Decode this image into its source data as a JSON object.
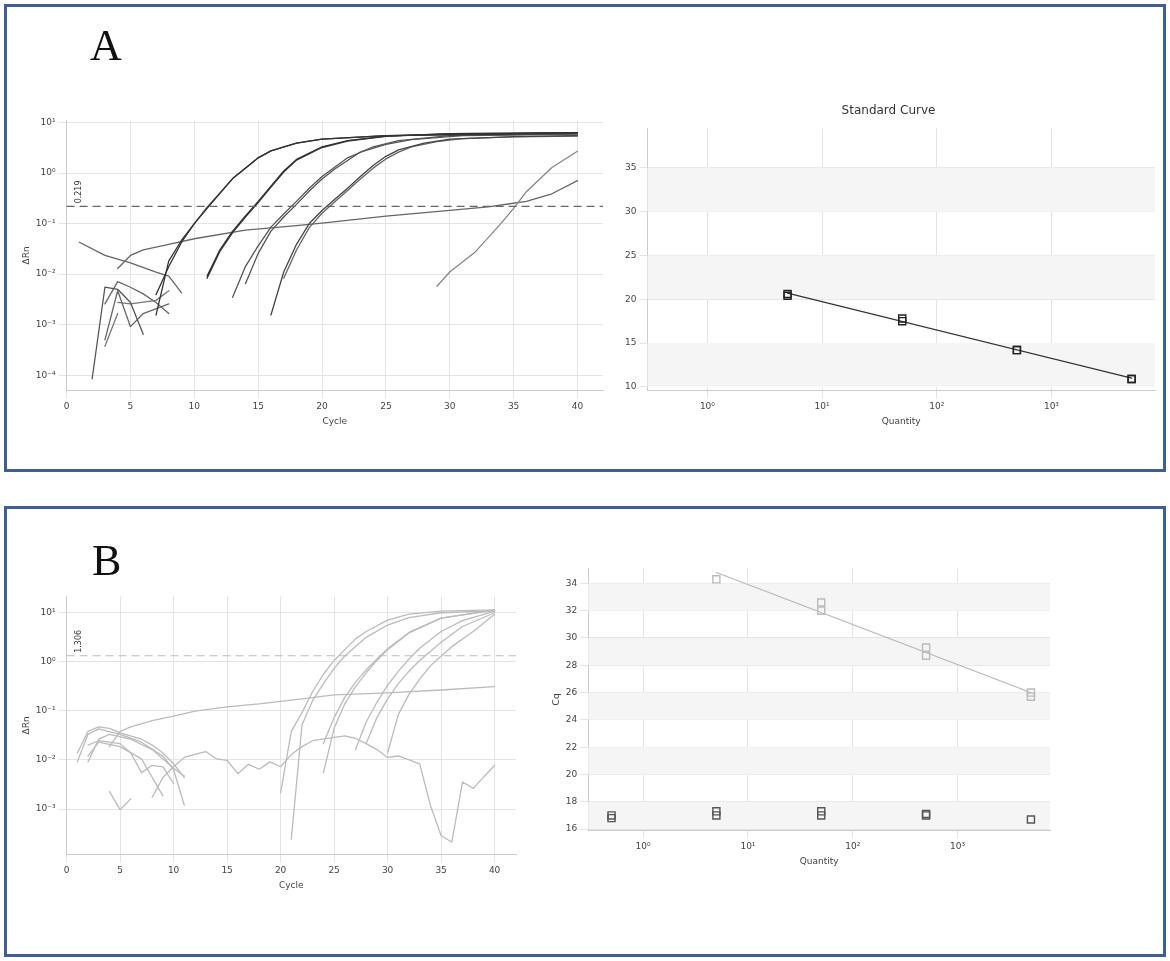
{
  "chart_data": [
    {
      "type": "line",
      "ylabel": "ΔRn",
      "xlabel": "Cycle",
      "annotations": [
        "A"
      ],
      "log": "y",
      "grid": true,
      "legend": false,
      "marker": "none",
      "xlim": [
        0,
        42
      ],
      "xticks": [
        0,
        5,
        10,
        15,
        20,
        25,
        30,
        35,
        40
      ],
      "ylim": [
        5e-05,
        11
      ],
      "yticks": [
        {
          "value": 10,
          "label": "10¹"
        },
        {
          "value": 1,
          "label": "10⁰"
        },
        {
          "value": 0.1,
          "label": "10⁻¹"
        },
        {
          "value": 0.01,
          "label": "10⁻²"
        },
        {
          "value": 0.001,
          "label": "10⁻³"
        },
        {
          "value": 0.0001,
          "label": "10⁻⁴"
        }
      ],
      "ref_lines": [
        {
          "axis": "y",
          "value": 0.219,
          "label": "0.219",
          "color": "#666666",
          "line_style": "dashed"
        }
      ],
      "series": [
        {
          "color": "#333333",
          "x": [
            7,
            8,
            9,
            10,
            11,
            13,
            15,
            16,
            18,
            20,
            25,
            40
          ],
          "values": [
            0.00155,
            0.0182,
            0.0468,
            0.1,
            0.209,
            0.776,
            2.0,
            2.75,
            3.89,
            4.68,
            5.5,
            6.17
          ]
        },
        {
          "color": "#333333",
          "x": [
            7,
            8,
            9,
            10,
            11,
            13,
            15,
            16,
            18,
            20,
            25,
            40
          ],
          "values": [
            0.0039,
            0.0141,
            0.0427,
            0.1,
            0.2,
            0.776,
            2.0,
            2.75,
            3.89,
            4.68,
            5.5,
            6.31
          ]
        },
        {
          "color": "#333333",
          "x": [
            11,
            12,
            13,
            14,
            15,
            16,
            17,
            18,
            20,
            22,
            25,
            30,
            40
          ],
          "values": [
            0.00912,
            0.0302,
            0.0708,
            0.141,
            0.275,
            0.55,
            1.1,
            1.86,
            3.31,
            4.37,
            5.37,
            6.03,
            6.31
          ]
        },
        {
          "color": "#333333",
          "x": [
            11,
            12,
            13,
            14,
            15,
            16,
            17,
            18,
            20,
            22,
            25,
            30,
            40
          ],
          "values": [
            0.0083,
            0.028,
            0.066,
            0.135,
            0.26,
            0.53,
            1.05,
            1.8,
            3.2,
            4.3,
            5.3,
            6.0,
            6.2
          ]
        },
        {
          "color": "#555555",
          "x": [
            13,
            14,
            15,
            16,
            17,
            18,
            19,
            20,
            22,
            24,
            26,
            30,
            40
          ],
          "values": [
            0.00347,
            0.0141,
            0.0363,
            0.0851,
            0.155,
            0.275,
            0.501,
            0.851,
            2.0,
            3.31,
            4.37,
            5.5,
            6.03
          ]
        },
        {
          "color": "#555555",
          "x": [
            14,
            15,
            16,
            17,
            18,
            19,
            20,
            21,
            23,
            25,
            27,
            31,
            40
          ],
          "values": [
            0.00646,
            0.0257,
            0.0708,
            0.135,
            0.24,
            0.44,
            0.76,
            1.2,
            2.6,
            3.7,
            4.6,
            5.5,
            5.9
          ]
        },
        {
          "color": "#444444",
          "x": [
            16,
            17,
            18,
            19,
            20,
            21,
            22,
            23,
            24,
            25,
            26,
            28,
            30,
            35,
            40
          ],
          "values": [
            0.00155,
            0.011,
            0.0389,
            0.1,
            0.182,
            0.302,
            0.501,
            0.851,
            1.41,
            2.14,
            2.88,
            3.89,
            4.68,
            5.25,
            5.5
          ]
        },
        {
          "color": "#666666",
          "x": [
            17,
            18,
            19,
            20,
            21,
            22,
            23,
            24,
            25,
            26,
            27,
            29,
            31,
            35,
            40
          ],
          "values": [
            0.0083,
            0.03,
            0.083,
            0.16,
            0.27,
            0.45,
            0.76,
            1.25,
            1.9,
            2.6,
            3.3,
            4.2,
            4.8,
            5.2,
            5.4
          ]
        },
        {
          "color": "#888888",
          "x": [
            29,
            30,
            32,
            34,
            35,
            36,
            38,
            40
          ],
          "values": [
            0.00575,
            0.011,
            0.0275,
            0.1,
            0.2,
            0.427,
            1.29,
            2.69
          ]
        },
        {
          "color": "#666666",
          "x": [
            4,
            5,
            6,
            8,
            10,
            14,
            18,
            20,
            25,
            30,
            33,
            36,
            38,
            40
          ],
          "values": [
            0.0129,
            0.0234,
            0.0302,
            0.0389,
            0.0501,
            0.0741,
            0.0912,
            0.102,
            0.141,
            0.182,
            0.214,
            0.275,
            0.389,
            0.708
          ]
        },
        {
          "color": "#666666",
          "x": [
            1,
            3,
            5,
            7,
            8,
            9
          ],
          "values": [
            0.0427,
            0.0234,
            0.0166,
            0.011,
            0.00912,
            0.00427
          ]
        },
        {
          "color": "#555555",
          "x": [
            2,
            3,
            4,
            5,
            6
          ],
          "values": [
            8.51e-05,
            0.0055,
            0.00501,
            0.00275,
            0.000646
          ]
        },
        {
          "color": "#666666",
          "x": [
            3,
            4,
            5,
            6,
            7,
            8
          ],
          "values": [
            0.00257,
            0.00708,
            0.0055,
            0.00407,
            0.00275,
            0.00166
          ]
        },
        {
          "color": "#666666",
          "x": [
            3,
            4,
            5,
            6,
            8
          ],
          "values": [
            0.000501,
            0.00468,
            0.000912,
            0.00166,
            0.00257
          ]
        },
        {
          "color": "#777777",
          "x": [
            3,
            4
          ],
          "values": [
            0.000372,
            0.00166
          ]
        },
        {
          "color": "#777777",
          "x": [
            4,
            5,
            7,
            8
          ],
          "values": [
            0.00275,
            0.00257,
            0.00302,
            0.00468
          ]
        }
      ]
    },
    {
      "type": "scatter",
      "title": "Standard Curve",
      "xlabel": "Quantity",
      "log": "x",
      "grid": true,
      "legend": false,
      "xlim": [
        0.31,
        8000
      ],
      "xticks": [
        {
          "value": 1,
          "label": "10⁰"
        },
        {
          "value": 10,
          "label": "10¹"
        },
        {
          "value": 100,
          "label": "10²"
        },
        {
          "value": 1000,
          "label": "10³"
        }
      ],
      "ylim": [
        9.6,
        39.5
      ],
      "yticks": [
        10,
        15,
        20,
        25,
        30,
        35
      ],
      "bands": [
        {
          "axis": "y",
          "from": 10,
          "to": 15,
          "color": "#f5f5f5"
        },
        {
          "axis": "y",
          "from": 20,
          "to": 25,
          "color": "#f5f5f5"
        },
        {
          "axis": "y",
          "from": 30,
          "to": 35,
          "color": "#f5f5f5"
        }
      ],
      "series": [
        {
          "color": "#222222",
          "marker": "square",
          "x": [
            5,
            5,
            50,
            50,
            500,
            500,
            5000,
            5000
          ],
          "values": [
            20.6,
            20.4,
            17.8,
            17.5,
            14.2,
            14.2,
            10.9,
            10.9
          ]
        },
        {
          "type": "line",
          "marker": "none",
          "color": "#333333",
          "x": [
            5,
            5000
          ],
          "values": [
            20.7,
            11.0
          ]
        }
      ]
    },
    {
      "type": "line",
      "ylabel": "ΔRn",
      "xlabel": "Cycle",
      "annotations": [
        "B"
      ],
      "log": "y",
      "grid": true,
      "legend": false,
      "marker": "none",
      "xlim": [
        0,
        42
      ],
      "xticks": [
        0,
        5,
        10,
        15,
        20,
        25,
        30,
        35,
        40
      ],
      "ylim": [
        0.00012,
        21
      ],
      "yticks": [
        {
          "value": 10,
          "label": "10¹"
        },
        {
          "value": 1,
          "label": "10⁰"
        },
        {
          "value": 0.1,
          "label": "10⁻¹"
        },
        {
          "value": 0.01,
          "label": "10⁻²"
        },
        {
          "value": 0.001,
          "label": "10⁻³"
        }
      ],
      "ref_lines": [
        {
          "axis": "y",
          "value": 1.306,
          "label": "1.306",
          "color": "#bbbbbb",
          "line_style": "dashed"
        }
      ],
      "series": [
        {
          "color": "#bbbbbb",
          "x": [
            20,
            21,
            22,
            23,
            24,
            25,
            26,
            27,
            28,
            30,
            32,
            35,
            40
          ],
          "values": [
            0.00214,
            0.038,
            0.0912,
            0.245,
            0.55,
            1.05,
            1.74,
            2.88,
            4.07,
            6.92,
            9.12,
            10.5,
            11.2
          ]
        },
        {
          "color": "#bbbbbb",
          "x": [
            21,
            22,
            23,
            24,
            25,
            26,
            28,
            30,
            32,
            35,
            40
          ],
          "values": [
            0.000245,
            0.0513,
            0.162,
            0.355,
            0.724,
            1.29,
            3.09,
            5.5,
            7.76,
            9.77,
            10.7
          ]
        },
        {
          "color": "#bbbbbb",
          "x": [
            24,
            25,
            26,
            27,
            28,
            29,
            30,
            32,
            35,
            40
          ],
          "values": [
            0.0055,
            0.0437,
            0.138,
            0.309,
            0.589,
            1.05,
            1.74,
            3.8,
            7.59,
            11.0
          ]
        },
        {
          "color": "#bbbbbb",
          "x": [
            24,
            25,
            26,
            27,
            28,
            29,
            30,
            32,
            35,
            40
          ],
          "values": [
            0.0214,
            0.0724,
            0.186,
            0.38,
            0.676,
            1.12,
            1.82,
            3.89,
            7.59,
            11.0
          ]
        },
        {
          "color": "#bbbbbb",
          "x": [
            27,
            28,
            29,
            30,
            31,
            32,
            33,
            35,
            37,
            40
          ],
          "values": [
            0.0162,
            0.0589,
            0.148,
            0.331,
            0.631,
            1.12,
            1.86,
            4.07,
            6.76,
            10.5
          ]
        },
        {
          "color": "#bbbbbb",
          "x": [
            28,
            29,
            30,
            31,
            32,
            33,
            35,
            37,
            40
          ],
          "values": [
            0.0214,
            0.0724,
            0.174,
            0.355,
            0.631,
            1.05,
            2.45,
            5.13,
            9.77
          ]
        },
        {
          "color": "#bbbbbb",
          "x": [
            30,
            31,
            32,
            33,
            34,
            35,
            36,
            38,
            40
          ],
          "values": [
            0.0138,
            0.0832,
            0.214,
            0.437,
            0.813,
            1.29,
            2.0,
            4.07,
            9.12
          ]
        },
        {
          "color": "#bbbbbb",
          "x": [
            4,
            5,
            6,
            8,
            10,
            12,
            15,
            18,
            20,
            22,
            25,
            30,
            35,
            40
          ],
          "values": [
            0.0186,
            0.038,
            0.0468,
            0.0631,
            0.0776,
            0.0977,
            0.12,
            0.138,
            0.155,
            0.174,
            0.209,
            0.229,
            0.263,
            0.309
          ]
        },
        {
          "color": "#bbbbbb",
          "x": [
            1,
            2,
            3,
            4,
            5,
            7,
            8,
            9,
            10,
            11
          ],
          "values": [
            0.0138,
            0.038,
            0.0468,
            0.0437,
            0.0355,
            0.0263,
            0.02,
            0.0138,
            0.00832,
            0.00437
          ]
        },
        {
          "color": "#bbbbbb",
          "x": [
            1,
            2,
            3,
            5,
            7,
            9,
            10,
            11
          ],
          "values": [
            0.00912,
            0.0331,
            0.0427,
            0.0331,
            0.0229,
            0.012,
            0.00631,
            0.0012
          ]
        },
        {
          "color": "#bbbbbb",
          "x": [
            2,
            3,
            4,
            6,
            8,
            10,
            11
          ],
          "values": [
            0.00912,
            0.0263,
            0.0331,
            0.0263,
            0.0162,
            0.00676,
            0.00468
          ]
        },
        {
          "color": "#bbbbbb",
          "x": [
            2,
            3,
            5,
            6,
            7,
            8,
            9,
            10
          ],
          "values": [
            0.02,
            0.0245,
            0.0214,
            0.0138,
            0.0055,
            0.00776,
            0.00724,
            0.00331
          ]
        },
        {
          "color": "#bbbbbb",
          "x": [
            2,
            3,
            5,
            7,
            9
          ],
          "values": [
            0.012,
            0.0229,
            0.0186,
            0.0105,
            0.00186
          ]
        },
        {
          "color": "#bbbbbb",
          "x": [
            4,
            5,
            6
          ],
          "values": [
            0.00229,
            0.000977,
            0.00162
          ]
        },
        {
          "color": "#bbbbbb",
          "x": [
            8,
            9,
            10,
            11,
            12,
            13,
            14,
            15,
            16,
            17,
            18,
            19,
            20,
            21,
            22,
            23,
            25,
            26,
            27,
            28,
            29,
            30,
            31,
            33,
            34,
            35,
            36,
            37,
            38,
            40
          ],
          "values": [
            0.00174,
            0.00437,
            0.00724,
            0.0112,
            0.0129,
            0.0148,
            0.0105,
            0.00977,
            0.00525,
            0.00813,
            0.00646,
            0.00912,
            0.00724,
            0.0129,
            0.0186,
            0.0245,
            0.0288,
            0.0309,
            0.0275,
            0.0214,
            0.0162,
            0.0112,
            0.012,
            0.00832,
            0.0012,
            0.000288,
            0.000214,
            0.00355,
            0.00263,
            0.00776
          ]
        }
      ]
    },
    {
      "type": "scatter",
      "xlabel": "Quantity",
      "ylabel": "Cq",
      "log": "x",
      "grid": true,
      "legend": false,
      "xlim": [
        0.31,
        7600
      ],
      "xticks": [
        {
          "value": 1,
          "label": "10⁰"
        },
        {
          "value": 10,
          "label": "10¹"
        },
        {
          "value": 100,
          "label": "10²"
        },
        {
          "value": 1000,
          "label": "10³"
        }
      ],
      "ylim": [
        15.9,
        35.1
      ],
      "yticks": [
        16,
        18,
        20,
        22,
        24,
        26,
        28,
        30,
        32,
        34
      ],
      "bands": [
        {
          "axis": "y",
          "from": 16,
          "to": 18,
          "color": "#f5f5f5"
        },
        {
          "axis": "y",
          "from": 20,
          "to": 22,
          "color": "#f5f5f5"
        },
        {
          "axis": "y",
          "from": 24,
          "to": 26,
          "color": "#f5f5f5"
        },
        {
          "axis": "y",
          "from": 28,
          "to": 30,
          "color": "#f5f5f5"
        },
        {
          "axis": "y",
          "from": 32,
          "to": 34,
          "color": "#f5f5f5"
        }
      ],
      "series": [
        {
          "color": "#bbbbbb",
          "marker": "square",
          "x": [
            5,
            50,
            50,
            500,
            500,
            5000,
            5000
          ],
          "values": [
            34.3,
            32.6,
            32.0,
            29.3,
            28.7,
            26.0,
            25.7
          ]
        },
        {
          "type": "line",
          "marker": "none",
          "color": "#bbbbbb",
          "x": [
            5,
            5000
          ],
          "values": [
            34.8,
            26.0
          ]
        },
        {
          "color": "#555555",
          "marker": "square",
          "x": [
            0.5,
            0.5,
            5,
            5,
            50,
            50,
            500,
            500,
            5000
          ],
          "values": [
            17.0,
            16.8,
            17.3,
            17.0,
            17.3,
            17.0,
            17.1,
            17.0,
            16.7
          ]
        }
      ]
    }
  ]
}
